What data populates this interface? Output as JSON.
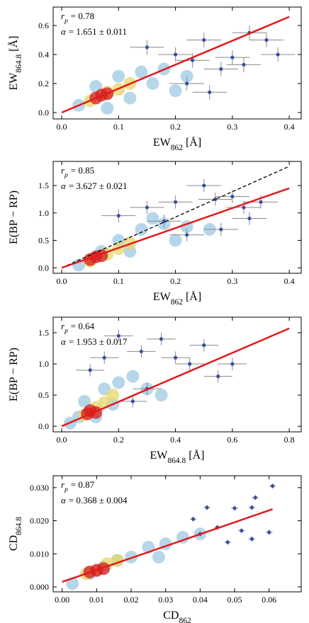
{
  "chart_data": [
    {
      "type": "scatter",
      "x_label": {
        "base": "EW",
        "sub": "862",
        "unit": "[Å]"
      },
      "y_label": {
        "base": "EW",
        "sub": "864.8",
        "unit": "[Å]"
      },
      "annotations": [
        {
          "base": "r",
          "sub": "p",
          "rest": "= 0.78"
        },
        {
          "base": "α",
          "rest": "= 1.651 ± 0.011"
        }
      ],
      "xlim": [
        -0.015,
        0.421
      ],
      "ylim": [
        -0.044,
        0.727
      ],
      "xticks": [
        {
          "value": 0,
          "label": "0.0"
        },
        0.1,
        0.2,
        0.3,
        0.4
      ],
      "yticks": [
        {
          "value": 0,
          "label": "0.0"
        },
        0.2,
        0.4,
        0.6
      ],
      "series": [
        {
          "type": "scatter",
          "color": "#9ecae1",
          "x": [
            0.03,
            0.06,
            0.1,
            0.14,
            0.18,
            0.22,
            0.12,
            0.08,
            0.2,
            0.16
          ],
          "values": [
            0.05,
            0.18,
            0.25,
            0.28,
            0.3,
            0.25,
            0.1,
            0.03,
            0.15,
            0.2
          ]
        },
        {
          "type": "scatter",
          "color": "#e8d66a",
          "x": [
            0.05,
            0.08,
            0.1,
            0.12
          ],
          "values": [
            0.08,
            0.14,
            0.16,
            0.2
          ]
        },
        {
          "type": "scatter",
          "color": "#d7191c",
          "x": [
            0.06,
            0.07,
            0.08
          ],
          "values": [
            0.1,
            0.12,
            0.13
          ]
        },
        {
          "type": "scatter",
          "color": "#3a4fa0",
          "x": [
            0.15,
            0.2,
            0.23,
            0.25,
            0.28,
            0.3,
            0.32,
            0.33,
            0.36,
            0.38,
            0.26,
            0.22
          ],
          "values": [
            0.45,
            0.4,
            0.36,
            0.5,
            0.3,
            0.38,
            0.33,
            0.55,
            0.5,
            0.4,
            0.14,
            0.2
          ],
          "xerr": [
            0.03,
            0.03,
            0.03,
            0.03,
            0.03,
            0.03,
            0.03,
            0.03,
            0.03,
            0.03,
            0.03,
            0.03
          ],
          "yerr": [
            0.05,
            0.05,
            0.05,
            0.05,
            0.05,
            0.05,
            0.05,
            0.05,
            0.05,
            0.05,
            0.05,
            0.05
          ]
        },
        {
          "type": "line",
          "color": "#e31a1c",
          "dash": "solid",
          "x": [
            0,
            0.4
          ],
          "values": [
            0,
            0.66
          ]
        }
      ]
    },
    {
      "type": "scatter",
      "x_label": {
        "base": "EW",
        "sub": "862",
        "unit": "[Å]"
      },
      "y_label": {
        "base": "E(BP − RP)"
      },
      "annotations": [
        {
          "base": "r",
          "sub": "p",
          "rest": "= 0.85"
        },
        {
          "base": "α",
          "rest": "= 3.627 ± 0.021"
        }
      ],
      "xlim": [
        -0.015,
        0.421
      ],
      "ylim": [
        -0.1,
        1.94
      ],
      "xticks": [
        {
          "value": 0,
          "label": "0.0"
        },
        0.1,
        0.2,
        0.3,
        0.4
      ],
      "yticks": [
        {
          "value": 0,
          "label": "0.0"
        },
        0.5,
        {
          "value": 1,
          "label": "1.0"
        },
        1.5
      ],
      "series": [
        {
          "type": "scatter",
          "color": "#9ecae1",
          "x": [
            0.03,
            0.07,
            0.1,
            0.14,
            0.18,
            0.22,
            0.12,
            0.2,
            0.26,
            0.16
          ],
          "values": [
            0.05,
            0.3,
            0.5,
            0.7,
            0.8,
            0.75,
            0.3,
            0.5,
            0.7,
            0.9
          ]
        },
        {
          "type": "scatter",
          "color": "#e8d66a",
          "x": [
            0.05,
            0.08,
            0.1,
            0.12
          ],
          "values": [
            0.12,
            0.25,
            0.35,
            0.45
          ]
        },
        {
          "type": "scatter",
          "color": "#d7191c",
          "x": [
            0.05,
            0.06,
            0.07
          ],
          "values": [
            0.15,
            0.2,
            0.22
          ]
        },
        {
          "type": "scatter",
          "color": "#3a4fa0",
          "x": [
            0.1,
            0.15,
            0.2,
            0.25,
            0.27,
            0.3,
            0.32,
            0.33,
            0.28,
            0.22,
            0.18,
            0.35
          ],
          "values": [
            0.95,
            1.1,
            1.2,
            1.5,
            1.25,
            1.3,
            1.1,
            0.9,
            0.7,
            0.6,
            0.85,
            1.2
          ],
          "xerr": [
            0.03,
            0.03,
            0.03,
            0.03,
            0.03,
            0.03,
            0.03,
            0.03,
            0.03,
            0.03,
            0.03,
            0.03
          ],
          "yerr": [
            0.12,
            0.12,
            0.12,
            0.12,
            0.12,
            0.12,
            0.12,
            0.12,
            0.12,
            0.12,
            0.12,
            0.12
          ]
        },
        {
          "type": "line",
          "color": "#000000",
          "dash": "dashed",
          "x": [
            0,
            0.4
          ],
          "values": [
            0,
            1.85
          ]
        },
        {
          "type": "line",
          "color": "#e31a1c",
          "dash": "solid",
          "x": [
            0,
            0.4
          ],
          "values": [
            0,
            1.45
          ]
        }
      ]
    },
    {
      "type": "scatter",
      "x_label": {
        "base": "EW",
        "sub": "864.8",
        "unit": "[Å]"
      },
      "y_label": {
        "base": "E(BP − RP)"
      },
      "annotations": [
        {
          "base": "r",
          "sub": "p",
          "rest": "= 0.64"
        },
        {
          "base": "α",
          "rest": "= 1.953 ± 0.017"
        }
      ],
      "xlim": [
        -0.03,
        0.842
      ],
      "ylim": [
        -0.09,
        1.75
      ],
      "xticks": [
        {
          "value": 0,
          "label": "0.0"
        },
        0.2,
        0.4,
        0.6,
        0.8
      ],
      "yticks": [
        {
          "value": 0,
          "label": "0.0"
        },
        0.5,
        {
          "value": 1,
          "label": "1.0"
        },
        1.5
      ],
      "series": [
        {
          "type": "scatter",
          "color": "#9ecae1",
          "x": [
            0.03,
            0.08,
            0.15,
            0.2,
            0.25,
            0.3,
            0.12,
            0.18,
            0.35,
            0.06
          ],
          "values": [
            0.05,
            0.4,
            0.6,
            0.7,
            0.8,
            0.6,
            0.15,
            0.35,
            0.5,
            0.15
          ]
        },
        {
          "type": "scatter",
          "color": "#e8d66a",
          "x": [
            0.08,
            0.12,
            0.15,
            0.18
          ],
          "values": [
            0.18,
            0.3,
            0.38,
            0.5
          ]
        },
        {
          "type": "scatter",
          "color": "#d7191c",
          "x": [
            0.09,
            0.1,
            0.12
          ],
          "values": [
            0.2,
            0.25,
            0.22
          ]
        },
        {
          "type": "scatter",
          "color": "#3a4fa0",
          "x": [
            0.1,
            0.2,
            0.28,
            0.35,
            0.4,
            0.45,
            0.5,
            0.55,
            0.6,
            0.3,
            0.15,
            0.25
          ],
          "values": [
            0.9,
            1.45,
            1.2,
            1.4,
            1.1,
            1.0,
            1.3,
            0.8,
            1.0,
            0.6,
            1.1,
            0.4
          ],
          "xerr": [
            0.05,
            0.05,
            0.05,
            0.05,
            0.05,
            0.05,
            0.05,
            0.05,
            0.05,
            0.05,
            0.05,
            0.05
          ],
          "yerr": [
            0.1,
            0.1,
            0.1,
            0.1,
            0.1,
            0.1,
            0.1,
            0.1,
            0.1,
            0.1,
            0.1,
            0.1
          ]
        },
        {
          "type": "line",
          "color": "#e31a1c",
          "dash": "solid",
          "x": [
            0,
            0.8
          ],
          "values": [
            0,
            1.57
          ]
        }
      ]
    },
    {
      "type": "scatter",
      "x_label": {
        "base": "CD",
        "sub": "862"
      },
      "y_label": {
        "base": "CD",
        "sub": "864.8"
      },
      "annotations": [
        {
          "base": "r",
          "sub": "p",
          "rest": "= 0.87"
        },
        {
          "base": "α",
          "rest": "= 0.368 ± 0.004"
        }
      ],
      "xlim": [
        -0.0026,
        0.0693
      ],
      "ylim": [
        -0.0015,
        0.0336
      ],
      "xticks": [
        {
          "value": 0,
          "label": "0.00"
        },
        0.01,
        0.02,
        0.03,
        0.04,
        0.05,
        0.06
      ],
      "yticks": [
        {
          "value": 0,
          "label": "0.000"
        },
        {
          "value": 0.01,
          "label": "0.010"
        },
        {
          "value": 0.02,
          "label": "0.020"
        },
        {
          "value": 0.03,
          "label": "0.030"
        }
      ],
      "series": [
        {
          "type": "scatter",
          "color": "#9ecae1",
          "x": [
            0.003,
            0.008,
            0.012,
            0.016,
            0.02,
            0.025,
            0.03,
            0.035,
            0.04,
            0.028
          ],
          "values": [
            0.001,
            0.004,
            0.006,
            0.008,
            0.009,
            0.012,
            0.013,
            0.015,
            0.016,
            0.009
          ]
        },
        {
          "type": "scatter",
          "color": "#e8d66a",
          "x": [
            0.007,
            0.01,
            0.013,
            0.016
          ],
          "values": [
            0.004,
            0.005,
            0.007,
            0.008
          ]
        },
        {
          "type": "scatter",
          "color": "#d7191c",
          "x": [
            0.008,
            0.01,
            0.012
          ],
          "values": [
            0.0045,
            0.005,
            0.0055
          ]
        },
        {
          "type": "scatter",
          "color": "#3a4fa0",
          "x": [
            0.061,
            0.056,
            0.055,
            0.05,
            0.052,
            0.06,
            0.045,
            0.04,
            0.055,
            0.048,
            0.038,
            0.042
          ],
          "values": [
            0.0305,
            0.027,
            0.024,
            0.0238,
            0.017,
            0.0165,
            0.018,
            0.016,
            0.0145,
            0.0135,
            0.0205,
            0.024
          ],
          "xerr": [
            0.001,
            0.001,
            0.001,
            0.001,
            0.001,
            0.001,
            0.001,
            0.001,
            0.001,
            0.001,
            0.001,
            0.001
          ],
          "yerr": [
            0.0008,
            0.0008,
            0.0008,
            0.0008,
            0.0008,
            0.0008,
            0.0008,
            0.0008,
            0.0008,
            0.0008,
            0.0008,
            0.0008
          ]
        },
        {
          "type": "line",
          "color": "#e31a1c",
          "dash": "solid",
          "x": [
            0,
            0.061
          ],
          "values": [
            0.0015,
            0.0235
          ]
        }
      ]
    }
  ]
}
